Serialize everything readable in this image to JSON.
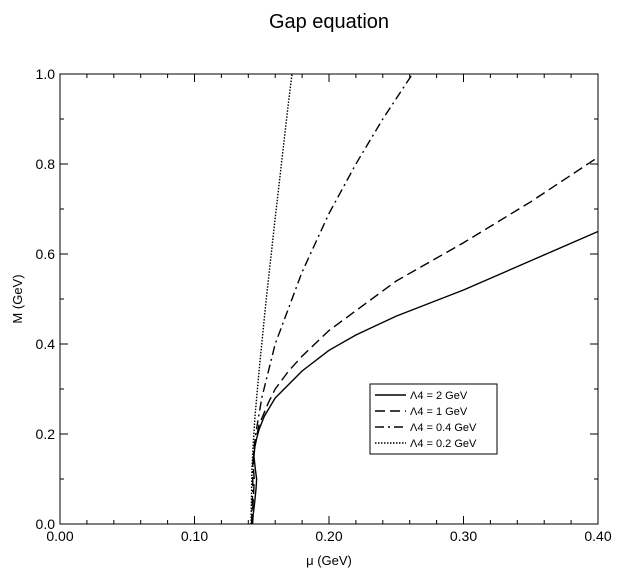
{
  "chart_data": {
    "type": "line",
    "title": "Gap equation",
    "xlabel": "μ (GeV)",
    "ylabel": "M (GeV)",
    "xlim": [
      0.0,
      0.4
    ],
    "ylim": [
      0.0,
      1.0
    ],
    "xticks": [
      0.0,
      0.1,
      0.2,
      0.3,
      0.4
    ],
    "xtick_labels": [
      "0.00",
      "0.10",
      "0.20",
      "0.30",
      "0.40"
    ],
    "yticks": [
      0.0,
      0.2,
      0.4,
      0.6,
      0.8,
      1.0
    ],
    "ytick_labels": [
      "0.0",
      "0.2",
      "0.4",
      "0.6",
      "0.8",
      "1.0"
    ],
    "grid": false,
    "legend_position": "lower-right",
    "series": [
      {
        "name": "Λ4 = 2 GeV",
        "dash": "solid",
        "points": [
          [
            0.1432,
            0.0
          ],
          [
            0.1436,
            0.02
          ],
          [
            0.1448,
            0.05
          ],
          [
            0.1458,
            0.08
          ],
          [
            0.1462,
            0.1
          ],
          [
            0.1453,
            0.12
          ],
          [
            0.1442,
            0.15
          ],
          [
            0.1448,
            0.17
          ],
          [
            0.1462,
            0.19
          ],
          [
            0.148,
            0.21
          ],
          [
            0.152,
            0.24
          ],
          [
            0.16,
            0.28
          ],
          [
            0.17,
            0.31
          ],
          [
            0.18,
            0.34
          ],
          [
            0.2,
            0.386
          ],
          [
            0.22,
            0.42
          ],
          [
            0.25,
            0.462
          ],
          [
            0.3,
            0.52
          ],
          [
            0.35,
            0.585
          ],
          [
            0.4,
            0.65
          ]
        ]
      },
      {
        "name": "Λ4 = 1 GeV",
        "dash": "long-dash",
        "points": [
          [
            0.1428,
            0.0
          ],
          [
            0.1432,
            0.03
          ],
          [
            0.144,
            0.07
          ],
          [
            0.1444,
            0.1
          ],
          [
            0.1436,
            0.13
          ],
          [
            0.1442,
            0.16
          ],
          [
            0.1455,
            0.185
          ],
          [
            0.148,
            0.22
          ],
          [
            0.155,
            0.27
          ],
          [
            0.16,
            0.3
          ],
          [
            0.17,
            0.34
          ],
          [
            0.18,
            0.373
          ],
          [
            0.2,
            0.43
          ],
          [
            0.25,
            0.54
          ],
          [
            0.3,
            0.625
          ],
          [
            0.35,
            0.716
          ],
          [
            0.4,
            0.815
          ]
        ]
      },
      {
        "name": "Λ4 = 0.4 GeV",
        "dash": "dash-dot",
        "points": [
          [
            0.1425,
            0.0
          ],
          [
            0.1428,
            0.04
          ],
          [
            0.1434,
            0.08
          ],
          [
            0.1432,
            0.12
          ],
          [
            0.1438,
            0.155
          ],
          [
            0.1455,
            0.2
          ],
          [
            0.15,
            0.28
          ],
          [
            0.16,
            0.4
          ],
          [
            0.18,
            0.56
          ],
          [
            0.2,
            0.69
          ],
          [
            0.22,
            0.8
          ],
          [
            0.24,
            0.9
          ],
          [
            0.262,
            1.0
          ]
        ]
      },
      {
        "name": "Λ4 = 0.2 GeV",
        "dash": "dotted",
        "points": [
          [
            0.142,
            0.0
          ],
          [
            0.1423,
            0.05
          ],
          [
            0.1427,
            0.12
          ],
          [
            0.1435,
            0.17
          ],
          [
            0.145,
            0.24
          ],
          [
            0.148,
            0.34
          ],
          [
            0.153,
            0.49
          ],
          [
            0.16,
            0.68
          ],
          [
            0.165,
            0.81
          ],
          [
            0.17,
            0.94
          ],
          [
            0.1725,
            1.0
          ]
        ]
      }
    ]
  }
}
